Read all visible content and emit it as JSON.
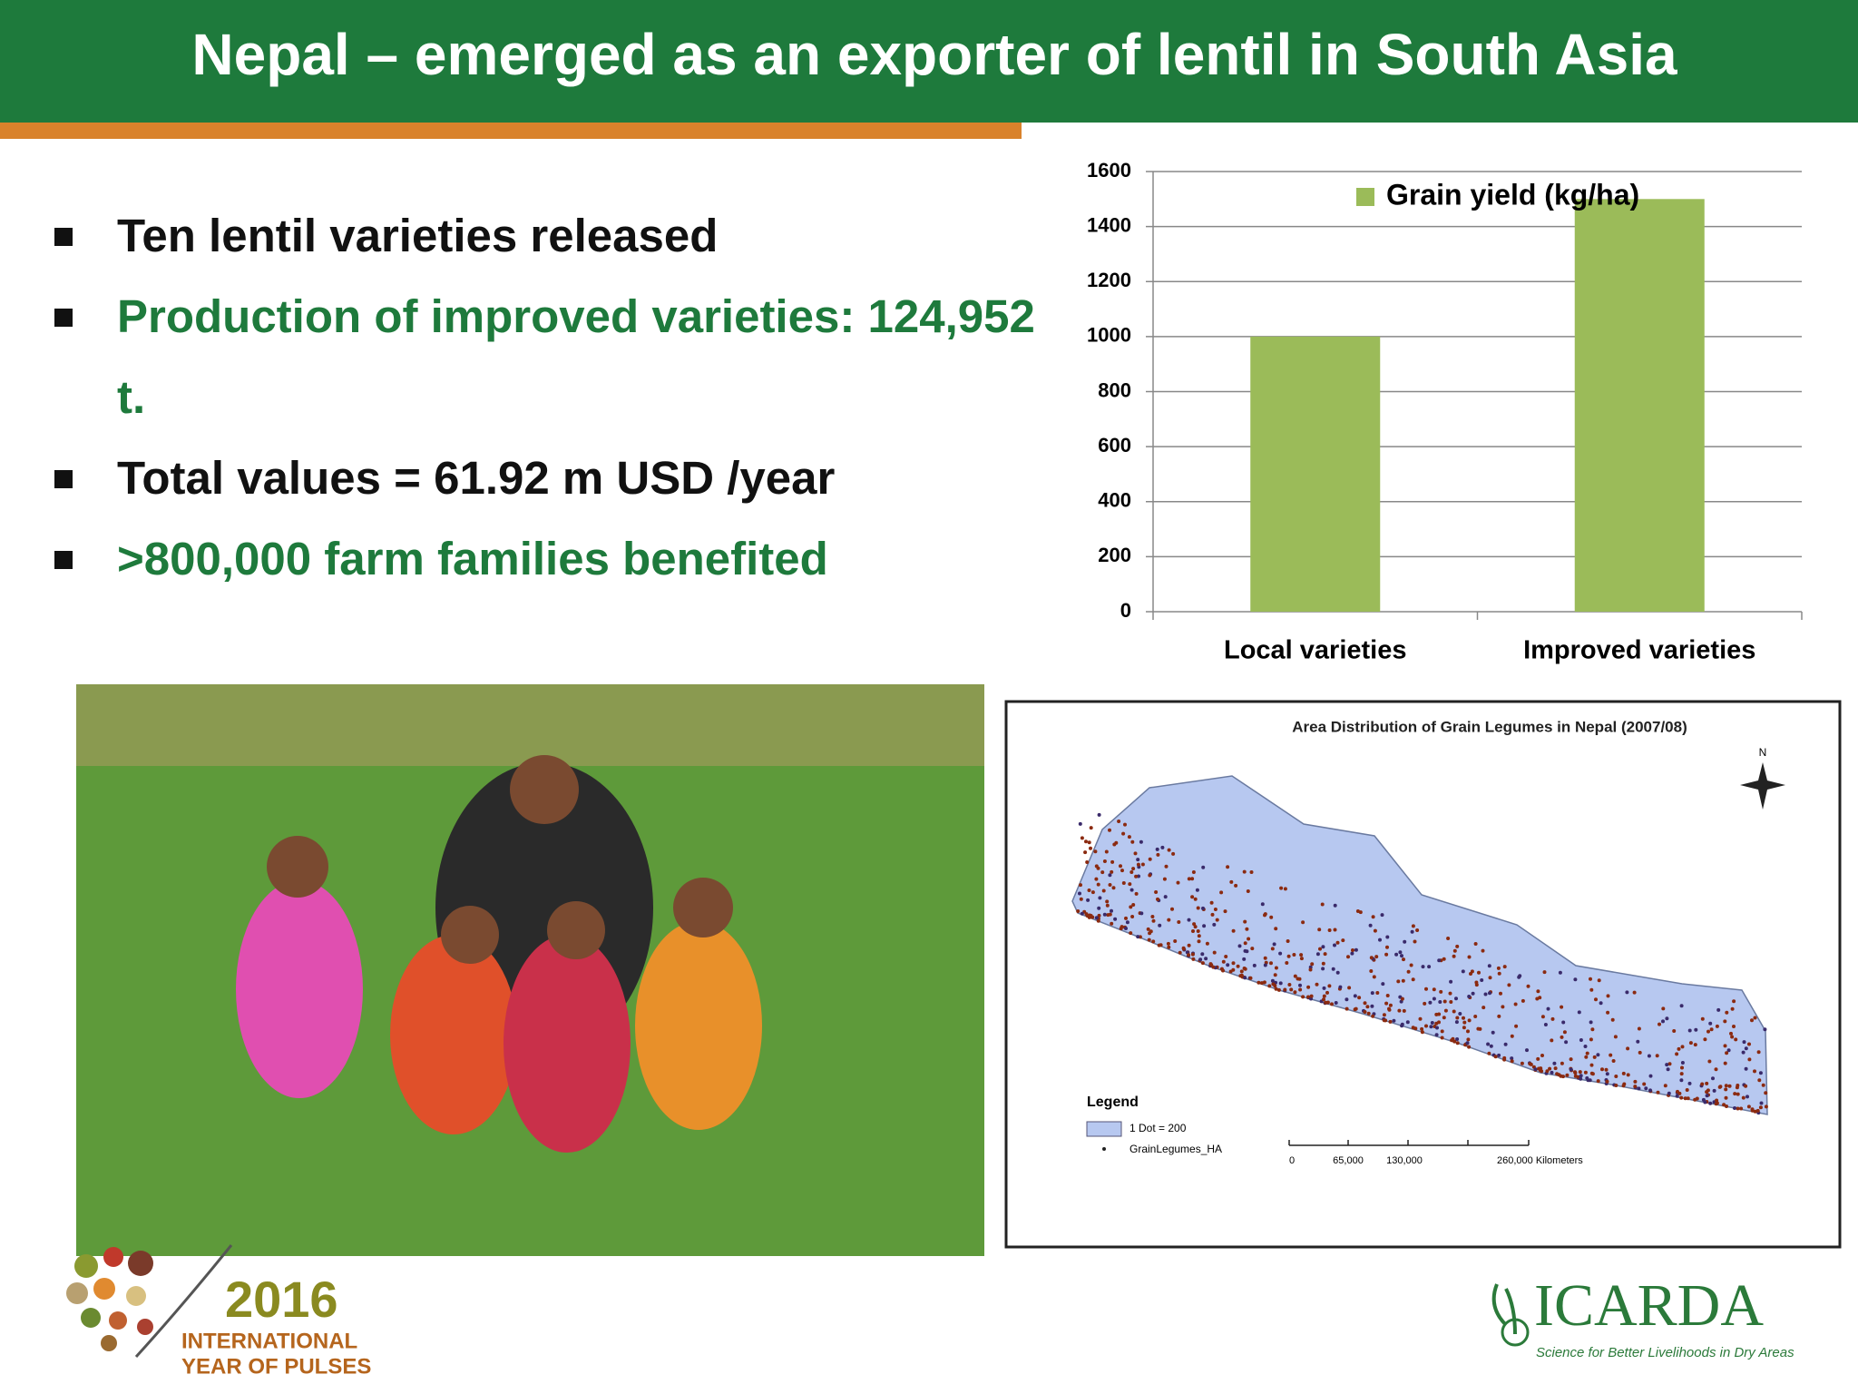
{
  "title": "Nepal – emerged as an exporter of lentil in South Asia",
  "bullets": [
    {
      "text": "Ten lentil varieties released",
      "color": "#111111"
    },
    {
      "text": "Production of improved varieties: 124,952 t.",
      "color": "#1e7a3c"
    },
    {
      "text": "Total values = 61.92 m USD /year",
      "color": "#111111"
    },
    {
      "text": ">800,000 farm families benefited",
      "color": "#1e7a3c"
    }
  ],
  "chart_data": {
    "type": "bar",
    "categories": [
      "Local varieties",
      "Improved varieties"
    ],
    "series": [
      {
        "name": "Grain yield (kg/ha)",
        "color": "#9bbb59",
        "values": [
          1000,
          1500
        ]
      }
    ],
    "ylim": [
      0,
      1600
    ],
    "yticks": [
      0,
      200,
      400,
      600,
      800,
      1000,
      1200,
      1400,
      1600
    ],
    "grid": true,
    "legend": "top-right"
  },
  "map": {
    "title": "Area Distribution of Grain Legumes in Nepal (2007/08)",
    "legend_title": "Legend",
    "legend_items": [
      "1 Dot = 200",
      "GrainLegumes_HA"
    ],
    "scale_labels": [
      "0",
      "65,000",
      "130,000",
      "260,000 Kilometers"
    ],
    "north": "N"
  },
  "logos": {
    "iyp_year": "2016",
    "iyp_lines": [
      "INTERNATIONAL",
      "YEAR OF PULSES"
    ],
    "icarda": "ICARDA",
    "icarda_tagline": "Science for Better Livelihoods in Dry Areas"
  }
}
